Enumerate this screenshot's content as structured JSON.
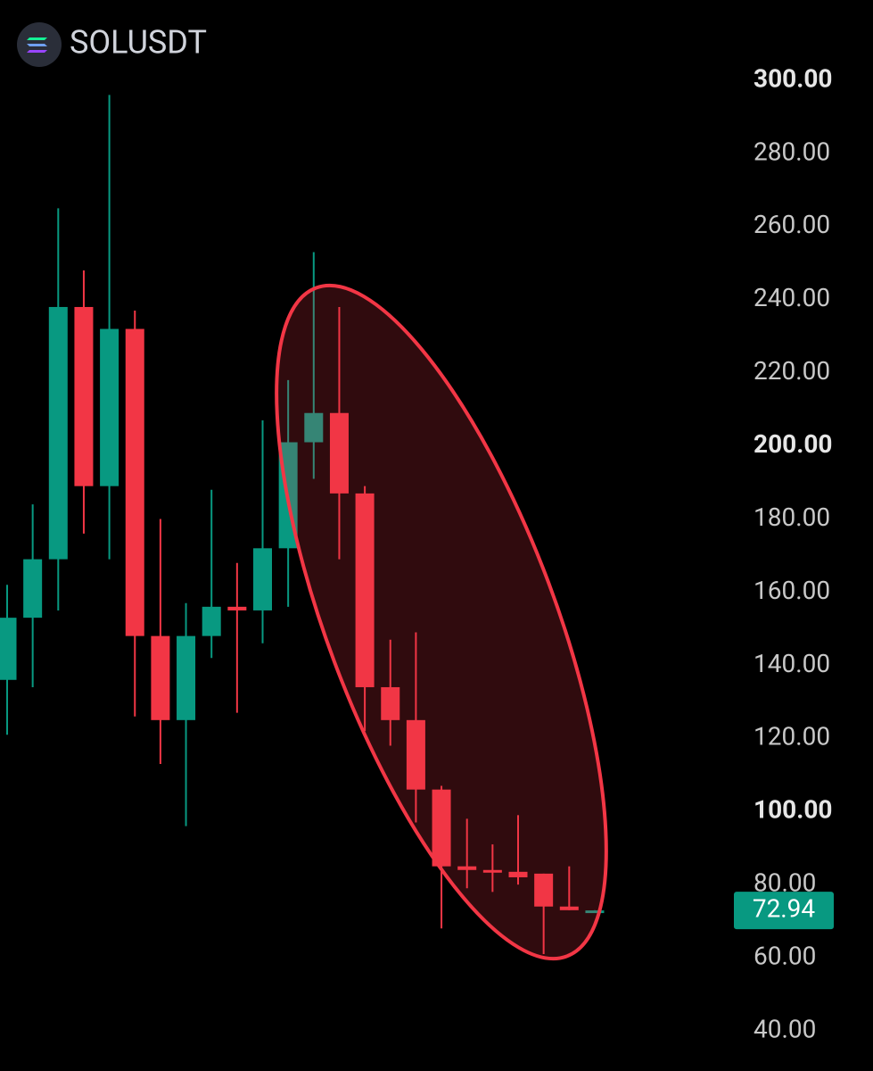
{
  "chart_data": {
    "type": "candlestick",
    "title": "SOLUSDT",
    "open": [
      136,
      153,
      169,
      238,
      189,
      232,
      148,
      125,
      148,
      156,
      155,
      172,
      201,
      209,
      187,
      134,
      125,
      106,
      85,
      84,
      83.5,
      83,
      74,
      72.9
    ],
    "high": [
      162,
      184,
      265,
      248,
      296,
      237,
      180,
      157,
      188,
      168,
      207,
      218,
      253,
      238,
      189,
      147,
      149,
      107,
      98,
      91,
      99,
      83,
      85,
      73
    ],
    "low": [
      121,
      134,
      155,
      176,
      169,
      126,
      113,
      96,
      142,
      127,
      146,
      156,
      191,
      169,
      122,
      118,
      97,
      68,
      79,
      78,
      80,
      61,
      73,
      72.9
    ],
    "close": [
      153,
      169,
      238,
      189,
      232,
      148,
      125,
      148,
      156,
      155,
      172,
      201,
      209,
      187,
      134,
      125,
      106,
      85,
      84,
      83.5,
      82,
      74,
      73,
      72.94
    ],
    "up_color": "#089981",
    "down_color": "#f23645",
    "ylim": [
      40,
      300
    ],
    "yticks": [
      {
        "value": 40,
        "label": "40.00"
      },
      {
        "value": 60,
        "label": "60.00"
      },
      {
        "value": 80,
        "label": "80.00"
      },
      {
        "value": 100,
        "label": "100.00"
      },
      {
        "value": 120,
        "label": "120.00"
      },
      {
        "value": 140,
        "label": "140.00"
      },
      {
        "value": 160,
        "label": "160.00"
      },
      {
        "value": 180,
        "label": "180.00"
      },
      {
        "value": 200,
        "label": "200.00"
      },
      {
        "value": 220,
        "label": "220.00"
      },
      {
        "value": 240,
        "label": "240.00"
      },
      {
        "value": 260,
        "label": "260.00"
      },
      {
        "value": 280,
        "label": "280.00"
      },
      {
        "value": 300,
        "label": "300.00"
      }
    ],
    "last_price": 72.94
  }
}
